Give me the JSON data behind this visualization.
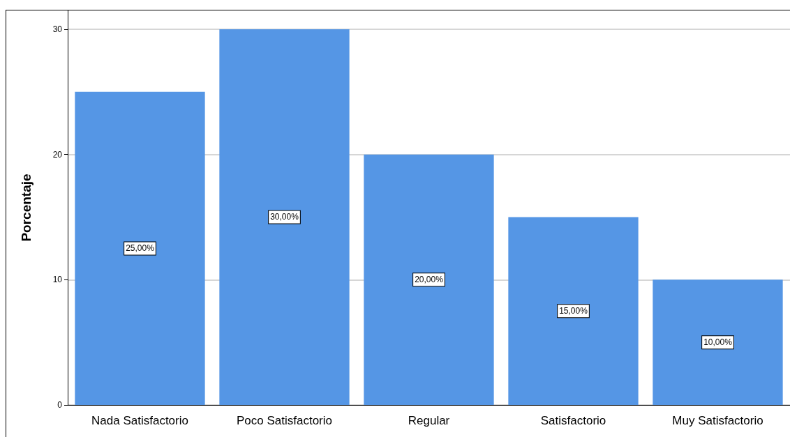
{
  "chart_data": {
    "type": "bar",
    "ylabel": "Porcentaje",
    "categories": [
      "Nada Satisfactorio",
      "Poco Satisfactorio",
      "Regular",
      "Satisfactorio",
      "Muy Satisfactorio"
    ],
    "values": [
      25,
      30,
      20,
      15,
      10
    ],
    "color": "#5596e5",
    "value_labels": [
      "25,00%",
      "30,00%",
      "20,00%",
      "15,00%",
      "10,00%"
    ],
    "ylim": [
      0,
      31.5
    ],
    "yticks": [
      0,
      10,
      20,
      30
    ],
    "grid": "y"
  }
}
